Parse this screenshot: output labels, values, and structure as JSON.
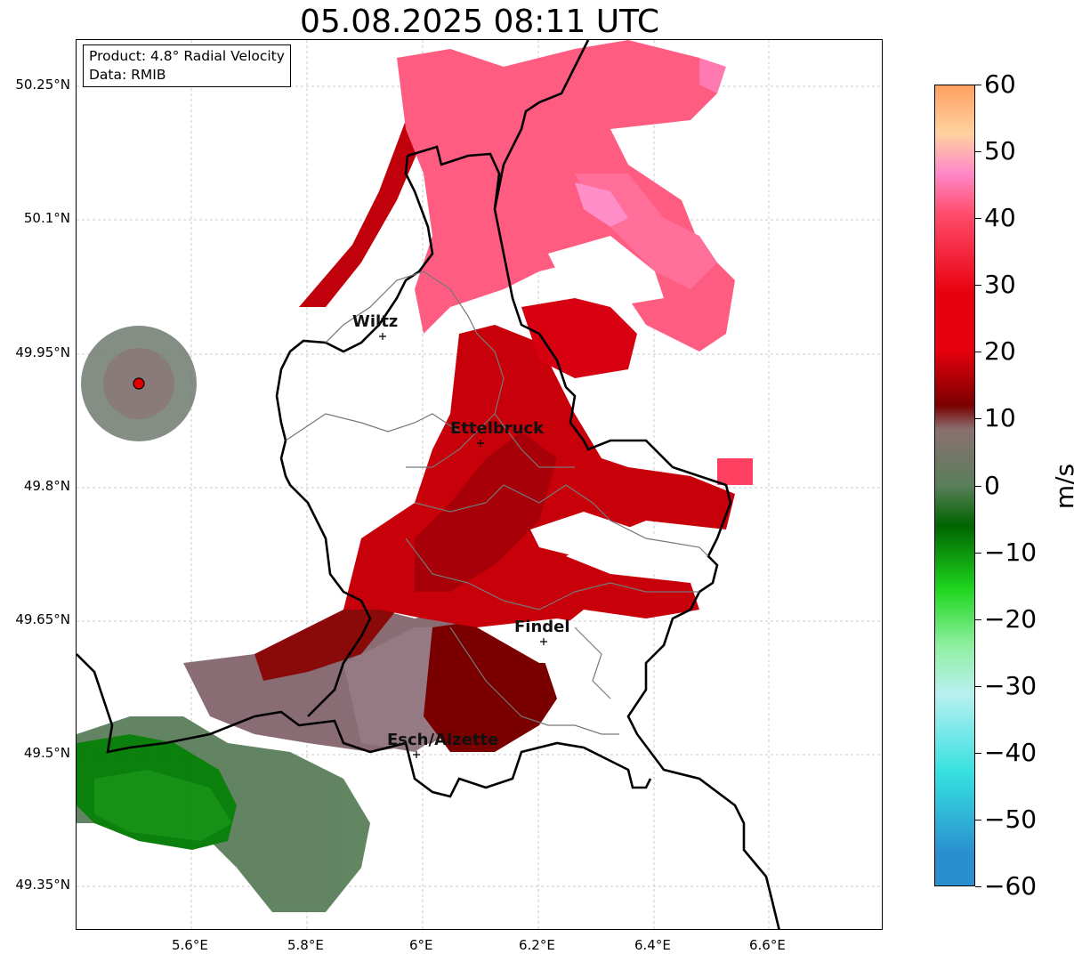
{
  "title": "05.08.2025 08:11 UTC",
  "info": {
    "product": "Product: 4.8° Radial Velocity",
    "source": "Data: RMIB"
  },
  "axes": {
    "lat_labels": [
      "50.25°N",
      "50.1°N",
      "49.95°N",
      "49.8°N",
      "49.65°N",
      "49.5°N",
      "49.35°N"
    ],
    "lon_labels": [
      "5.6°E",
      "5.8°E",
      "6°E",
      "6.2°E",
      "6.4°E",
      "6.6°E"
    ]
  },
  "cities": [
    {
      "name": "Wiltz"
    },
    {
      "name": "Ettelbruck"
    },
    {
      "name": "Findel"
    },
    {
      "name": "Esch/Alzette"
    }
  ],
  "colorbar": {
    "unit": "m/s",
    "ticks": [
      "60",
      "50",
      "40",
      "30",
      "20",
      "10",
      "0",
      "−10",
      "−20",
      "−30",
      "−40",
      "−50",
      "−60"
    ],
    "range": [
      -60,
      60
    ],
    "colors": {
      "approaching_strong": "#2a8fcf",
      "approaching_cyan": "#35e0e0",
      "approaching_light": "#b9f0f0",
      "light_green": "#8ef0a0",
      "green": "#1fd61f",
      "dark_green": "#006400",
      "grey_green": "#5a7e5a",
      "neutral": "#8a7070",
      "maroon": "#7a0000",
      "red": "#e8000e",
      "pink_red": "#ff4d6d",
      "pink": "#ff88c8",
      "peach": "#ffd2a0",
      "orange": "#ffa060"
    }
  }
}
